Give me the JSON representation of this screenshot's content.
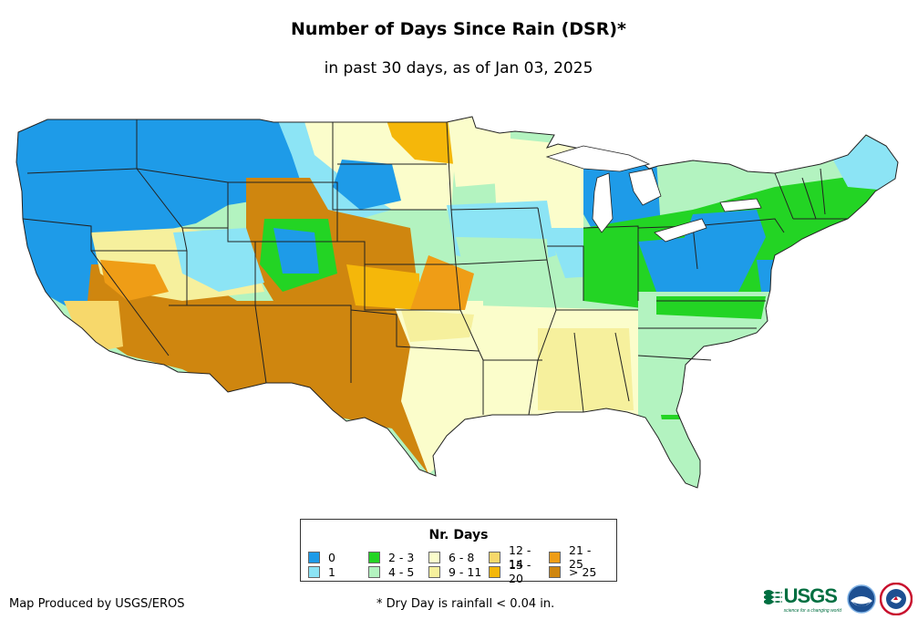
{
  "header": {
    "title": "Number of Days Since Rain (DSR)*",
    "subtitle": "in past 30 days, as of Jan 03, 2025"
  },
  "legend": {
    "title": "Nr. Days",
    "items": [
      {
        "label": "0",
        "color": "#1e9be8"
      },
      {
        "label": "1",
        "color": "#8ce4f5"
      },
      {
        "label": "2 - 3",
        "color": "#23d424"
      },
      {
        "label": "4 - 5",
        "color": "#b3f3c0"
      },
      {
        "label": "6 - 8",
        "color": "#fbfdcb"
      },
      {
        "label": "9 - 11",
        "color": "#f6f09d"
      },
      {
        "label": "12 - 14",
        "color": "#f7d86b"
      },
      {
        "label": "15 - 20",
        "color": "#f5b70a"
      },
      {
        "label": "21 - 25",
        "color": "#ef9d16"
      },
      {
        "label": "> 25",
        "color": "#cf860f"
      }
    ]
  },
  "footer": {
    "credit": "Map Produced by USGS/EROS",
    "footnote": "* Dry Day is rainfall < 0.04 in.",
    "logos": {
      "usgs": "USGS",
      "usgs_tagline": "science for a changing world",
      "noaa": "NOAA",
      "nws": "NATIONAL WEATHER SERVICE"
    }
  }
}
